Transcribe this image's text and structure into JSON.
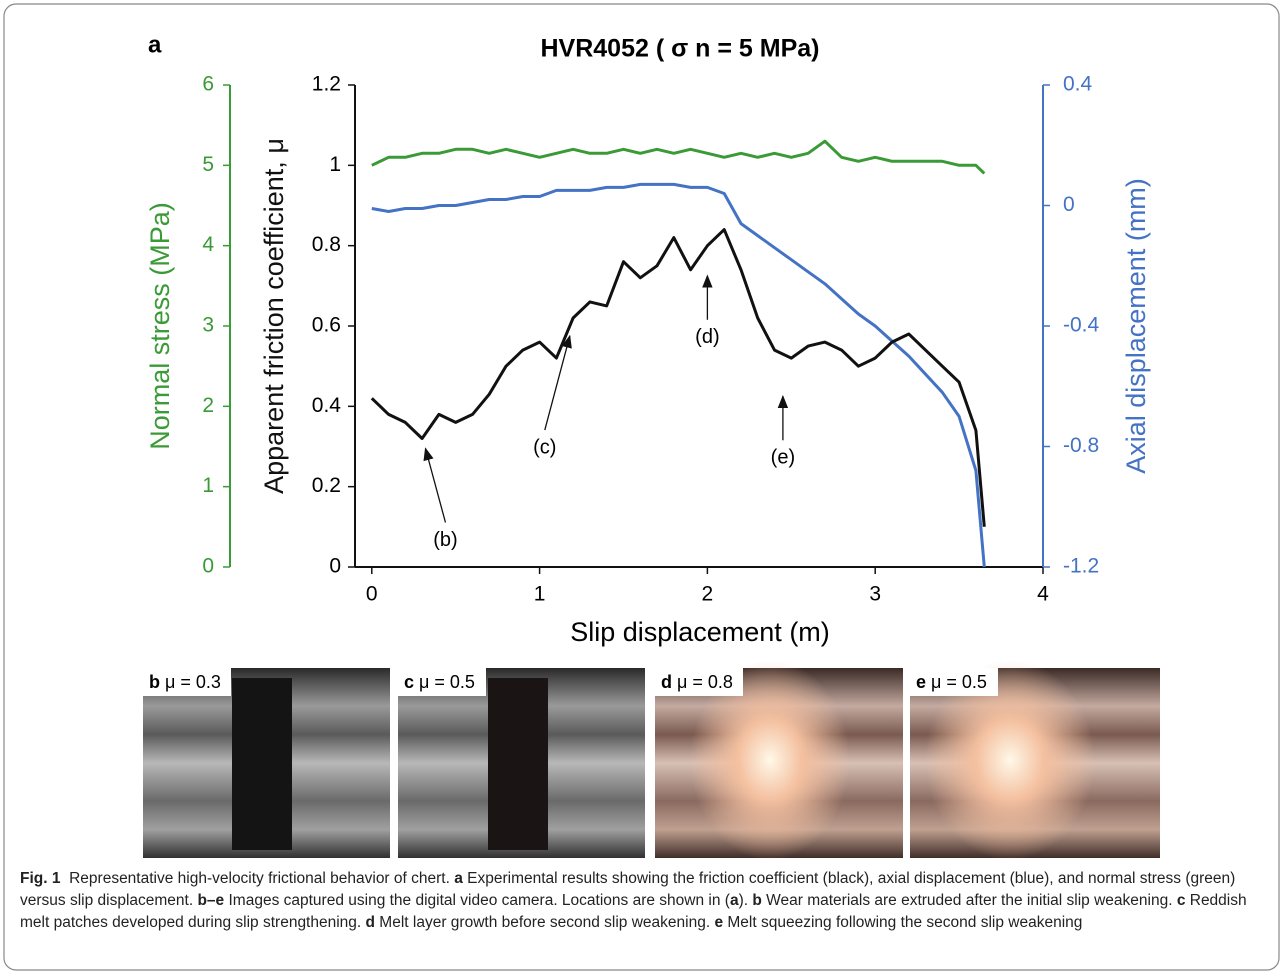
{
  "chart_data": {
    "type": "line",
    "panel_label": "a",
    "title": "HVR4052 ( σ n = 5 MPa)",
    "xlabel": "Slip displacement (m)",
    "ylabel": "Apparent friction coefficient, μ",
    "y2label": "Axial displacement (mm)",
    "y3label": "Normal stress (MPa)",
    "x": [
      0,
      0.1,
      0.2,
      0.3,
      0.4,
      0.5,
      0.6,
      0.7,
      0.8,
      0.9,
      1.0,
      1.1,
      1.2,
      1.3,
      1.4,
      1.5,
      1.6,
      1.7,
      1.8,
      1.9,
      2.0,
      2.1,
      2.2,
      2.3,
      2.4,
      2.5,
      2.6,
      2.7,
      2.8,
      2.9,
      3.0,
      3.1,
      3.2,
      3.3,
      3.4,
      3.5,
      3.6,
      3.65
    ],
    "xlim": [
      -0.1,
      4
    ],
    "xticks": [
      0,
      1,
      2,
      3,
      4
    ],
    "ylim": [
      0,
      1.2
    ],
    "yticks": [
      0,
      0.2,
      0.4,
      0.6,
      0.8,
      1,
      1.2
    ],
    "y2lim": [
      -1.2,
      0.4
    ],
    "y2ticks": [
      -1.2,
      -0.8,
      -0.4,
      0,
      0.4
    ],
    "y3lim": [
      0,
      6
    ],
    "y3ticks": [
      0,
      1,
      2,
      3,
      4,
      5,
      6
    ],
    "series": [
      {
        "color": "#111111",
        "axis": "y",
        "values": [
          0.42,
          0.38,
          0.36,
          0.32,
          0.38,
          0.36,
          0.38,
          0.43,
          0.5,
          0.54,
          0.56,
          0.52,
          0.62,
          0.66,
          0.65,
          0.76,
          0.72,
          0.75,
          0.82,
          0.74,
          0.8,
          0.84,
          0.74,
          0.62,
          0.54,
          0.52,
          0.55,
          0.56,
          0.54,
          0.5,
          0.52,
          0.56,
          0.58,
          0.54,
          0.5,
          0.46,
          0.34,
          0.1
        ]
      },
      {
        "color": "#4472c4",
        "axis": "y2",
        "values": [
          -0.01,
          -0.02,
          -0.01,
          -0.01,
          0,
          0,
          0.01,
          0.02,
          0.02,
          0.03,
          0.03,
          0.05,
          0.05,
          0.05,
          0.06,
          0.06,
          0.07,
          0.07,
          0.07,
          0.06,
          0.06,
          0.04,
          -0.06,
          -0.1,
          -0.14,
          -0.18,
          -0.22,
          -0.26,
          -0.31,
          -0.36,
          -0.4,
          -0.45,
          -0.5,
          -0.56,
          -0.62,
          -0.7,
          -0.88,
          -1.2
        ]
      },
      {
        "color": "#3a9a35",
        "axis": "y3",
        "values": [
          5.0,
          5.1,
          5.1,
          5.15,
          5.15,
          5.2,
          5.2,
          5.15,
          5.2,
          5.15,
          5.1,
          5.15,
          5.2,
          5.15,
          5.15,
          5.2,
          5.15,
          5.2,
          5.15,
          5.2,
          5.15,
          5.1,
          5.15,
          5.1,
          5.15,
          5.1,
          5.15,
          5.3,
          5.1,
          5.05,
          5.1,
          5.05,
          5.05,
          5.05,
          5.05,
          5.0,
          5.0,
          4.9
        ]
      }
    ],
    "annotations": [
      {
        "text": "(b)",
        "x": 0.32,
        "y": 0.3
      },
      {
        "text": "(c)",
        "x": 1.18,
        "y": 0.58
      },
      {
        "text": "(d)",
        "x": 2.0,
        "y": 0.73
      },
      {
        "text": "(e)",
        "x": 2.45,
        "y": 0.43
      }
    ]
  },
  "photos": [
    {
      "letter": "b",
      "label": "μ = 0.3"
    },
    {
      "letter": "c",
      "label": "μ = 0.5"
    },
    {
      "letter": "d",
      "label": "μ = 0.8"
    },
    {
      "letter": "e",
      "label": "μ = 0.5"
    }
  ],
  "caption": [
    {
      "text": "Fig. 1",
      "bold": true
    },
    {
      "text": "  Representative high-velocity frictional behavior of chert. ",
      "bold": false
    },
    {
      "text": "a",
      "bold": true
    },
    {
      "text": " Experimental results showing the friction coefficient (black), axial displacement (blue), and normal stress (green) versus slip displacement. ",
      "bold": false
    },
    {
      "text": "b–e",
      "bold": true
    },
    {
      "text": " Images captured using the digital video camera. Locations are shown in (",
      "bold": false
    },
    {
      "text": "a",
      "bold": true
    },
    {
      "text": "). ",
      "bold": false
    },
    {
      "text": "b",
      "bold": true
    },
    {
      "text": " Wear materials are extruded after the initial slip weakening. ",
      "bold": false
    },
    {
      "text": "c",
      "bold": true
    },
    {
      "text": " Reddish melt patches developed during slip strengthening. ",
      "bold": false
    },
    {
      "text": "d",
      "bold": true
    },
    {
      "text": " Melt layer growth before second slip weakening. ",
      "bold": false
    },
    {
      "text": "e",
      "bold": true
    },
    {
      "text": " Melt squeezing following the second slip weakening",
      "bold": false
    }
  ]
}
